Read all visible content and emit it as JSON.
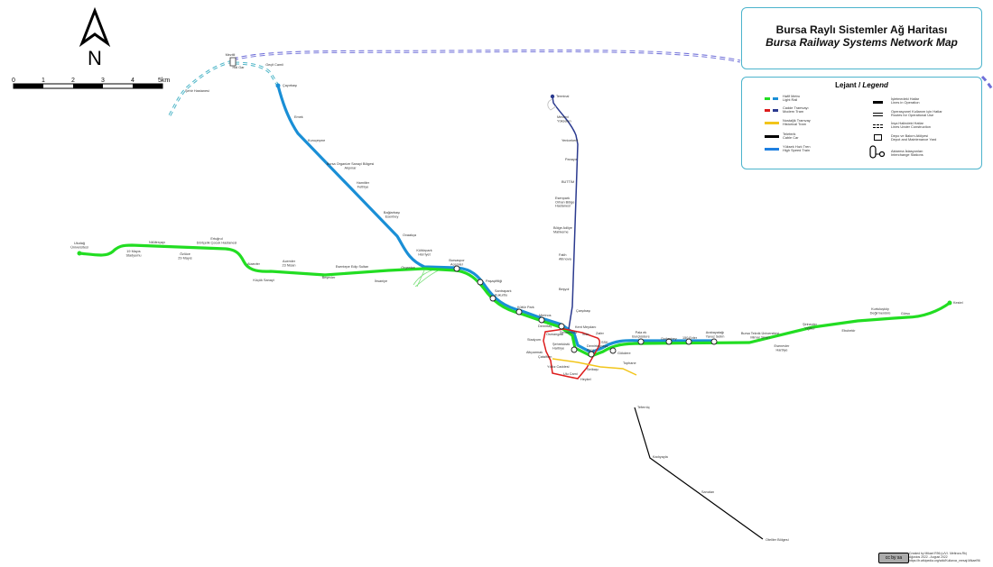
{
  "title": {
    "tr": "Bursa Raylı Sistemler Ağ Haritası",
    "en": "Bursa Railway Systems Network Map"
  },
  "compass": {
    "label": "N"
  },
  "scale": {
    "ticks": [
      "0",
      "1",
      "2",
      "3",
      "4",
      "5km"
    ]
  },
  "legend": {
    "title_tr": "Lejant / ",
    "title_en": "Legend",
    "lines": [
      {
        "tr": "Hafif Metro",
        "en": "Light Rail",
        "colors": [
          "#22dd22",
          "#1a8fd6"
        ]
      },
      {
        "tr": "Cadde Tramvayı",
        "en": "Modern Tram",
        "colors": [
          "#dd1c1c",
          "#2b3a8f"
        ]
      },
      {
        "tr": "Nostaljik Tramvay",
        "en": "Historical Tram",
        "colors": [
          "#f2c51a"
        ]
      },
      {
        "tr": "Teleferik",
        "en": "Cable Car",
        "colors": [
          "#000000"
        ]
      },
      {
        "tr": "Yüksek Hızlı Tren",
        "en": "High Speed Train",
        "colors": [
          "#1e7fe0"
        ]
      }
    ],
    "symbols": [
      {
        "tr": "İşletmedeki Hatlar",
        "en": "Lines in Operation",
        "icon": "operating-line-icon"
      },
      {
        "tr": "Operasyonel Kullanım için Hatlar",
        "en": "Routes for Operational Use",
        "icon": "double-line-icon"
      },
      {
        "tr": "İnşa Halindeki Hatlar",
        "en": "Lines Under Construction",
        "icon": "dashed-line-icon"
      },
      {
        "tr": "Depo ve Bakım Atölyesi",
        "en": "Depot and Maintenance Yard",
        "icon": "depot-icon"
      },
      {
        "tr": "Aktarma İstasyonları",
        "en": "Interchange Stations",
        "icon": "interchange-icon"
      }
    ]
  },
  "colors": {
    "light_rail_green": "#22dd22",
    "light_rail_blue": "#1a8fd6",
    "tram_red": "#dd1c1c",
    "tram_navy": "#2b3a8f",
    "historical": "#f2c51a",
    "cable_car": "#000000",
    "construction": "#6f6fd8",
    "frame": "#4cb4cc"
  },
  "stations": {
    "west": [
      "Uludağ\nÜniversitesi",
      "19 Mayıs\nStadyumu",
      "Nilüferçayı",
      "Özlüce\n29 Mayıs",
      "Ertuğrul\nDörtçelik Çocuk Hastanesi",
      "Ataevler",
      "Küçük Sanayi",
      "Acemler\n23 Nisan",
      "Beşevler",
      "Esentepe Edip Sultan",
      "İhsaniye",
      "Organize",
      "Kültürpark Hürriyet",
      "Bursaspor\nAcemler"
    ],
    "north": [
      "Şehir Hastanesi",
      "Mezitli",
      "Hal Gar",
      "Geçit Camii",
      "Çayırbaşı",
      "Emek",
      "Kuruçeşme",
      "Bursa Organize Sanayi Bölgesi\nAkpınar",
      "Hamitler\nFethiye",
      "Bağlarbaşı\nEsenbey",
      "Ovaakça",
      "Kültürpark\nHürriyet"
    ],
    "central": [
      "Paşaçiftliği",
      "Santrapark\nKukurtlu",
      "Kültür Park",
      "Merinos",
      "Demirtaş",
      "Osmangazi",
      "Şehreküstü",
      "Stadyum",
      "Altıparmak",
      "Zafer",
      "Setbaşı",
      "Heykel",
      "Çatalfırın",
      "Tophane",
      "Yıldız Caddesi",
      "Ulu Cami",
      "Kent Meydanı",
      "Sıtkı",
      "Demirtaşpaşa\nAkçe",
      "SSK",
      "Şehreküstü\nHarbiye",
      "Gökdere"
    ],
    "navy": [
      "Terminal",
      "Mevlevi\nYükselen",
      "Yenicekent",
      "Panayır",
      "BUTTİM",
      "Esenpark\nOrhan Bölge\nHastanesi",
      "Bölge Adliye\nMahkeme",
      "Fatih\nAltınova",
      "Beşyol",
      "Çarşıbaşı"
    ],
    "east": [
      "Pala ek\nBurçküdere",
      "Doğanbey",
      "150 Evler",
      "Arabayatağı\nYavuz Selim",
      "Bursa Teknik Üniversitesi\nMimar Sinan",
      "Esenevler\nHarbiye",
      "Şirinevler\nYiğitler",
      "Ebubekir",
      "Kurtuluşköy\nDeğirmenönü",
      "Gürsu",
      "Kestel"
    ],
    "cable": [
      "Teferrüç",
      "Kadıyayla",
      "Sarıalan",
      "Otelller Bölgesi"
    ]
  },
  "credits": {
    "license": "cc by sa",
    "lines": [
      "Created by Mikael R96 (u/V.I. Meltrora-Rk)",
      "Ağustos 2022 - August 2022",
      "https://tr.wikipedia.org/wiki/Kullanıcı_mesaj:Mikael96"
    ]
  }
}
